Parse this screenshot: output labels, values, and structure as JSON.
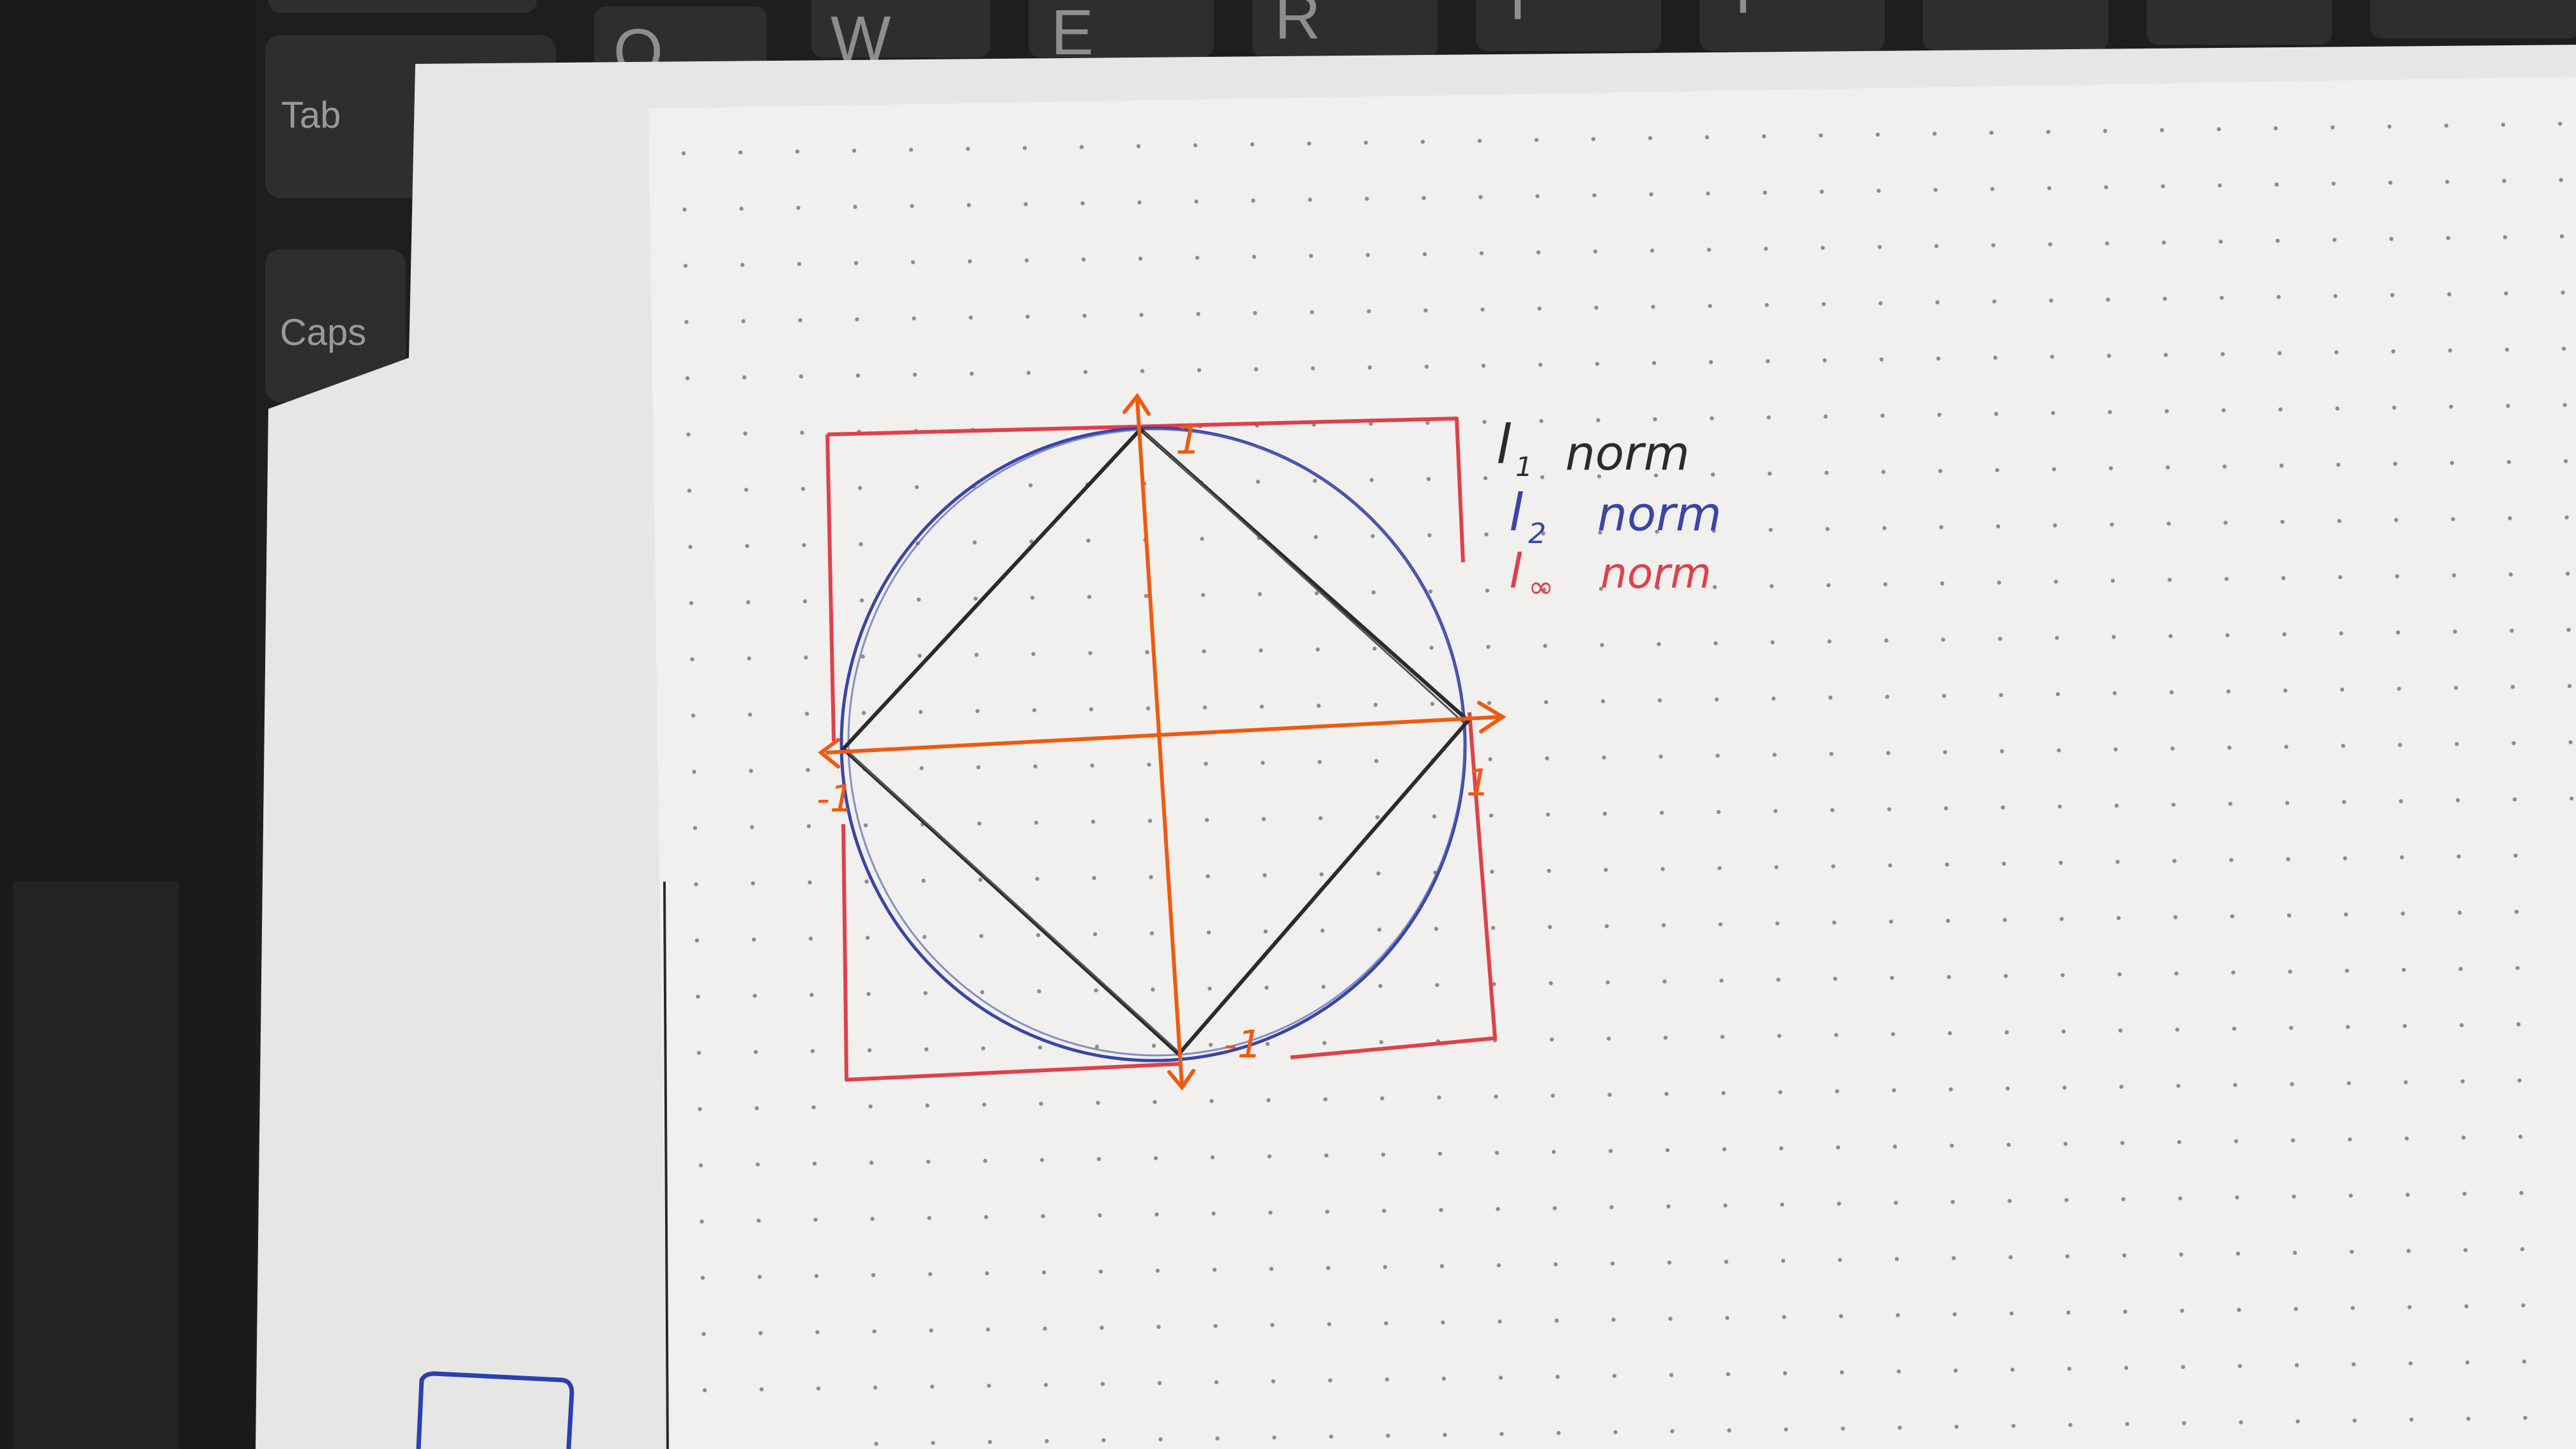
{
  "keyboard": {
    "keys": [
      "Tab",
      "Caps",
      "Q",
      "W",
      "E",
      "R",
      "T",
      "Y"
    ],
    "colors": {
      "base": "#1e1e1f",
      "keycap": "#2d2e30",
      "legend": "#9a9a9a"
    }
  },
  "paper": {
    "colors": {
      "sheet": "#f1f0ee",
      "sheet_back": "#e6e6e4",
      "dot": "#3c3c3c"
    }
  },
  "drawing": {
    "norm": "l_inf / l_2 / l_1 unit balls",
    "colors": {
      "l1": "#2b2b2b",
      "l2": "#3a45a8",
      "linf": "#e0404a",
      "axes": "#ef5a12",
      "corner_mark": "#2b3fb0"
    },
    "tick_labels": {
      "y_top": "1",
      "x_right": "1",
      "x_left": "-1",
      "y_bottom": "-1"
    }
  },
  "legend": {
    "l1": {
      "sym": "l",
      "sub": "1",
      "text": "norm"
    },
    "l2": {
      "sym": "l",
      "sub": "2",
      "text": "norm"
    },
    "linf": {
      "sym": "l",
      "sub": "∞",
      "text": "norm"
    }
  }
}
